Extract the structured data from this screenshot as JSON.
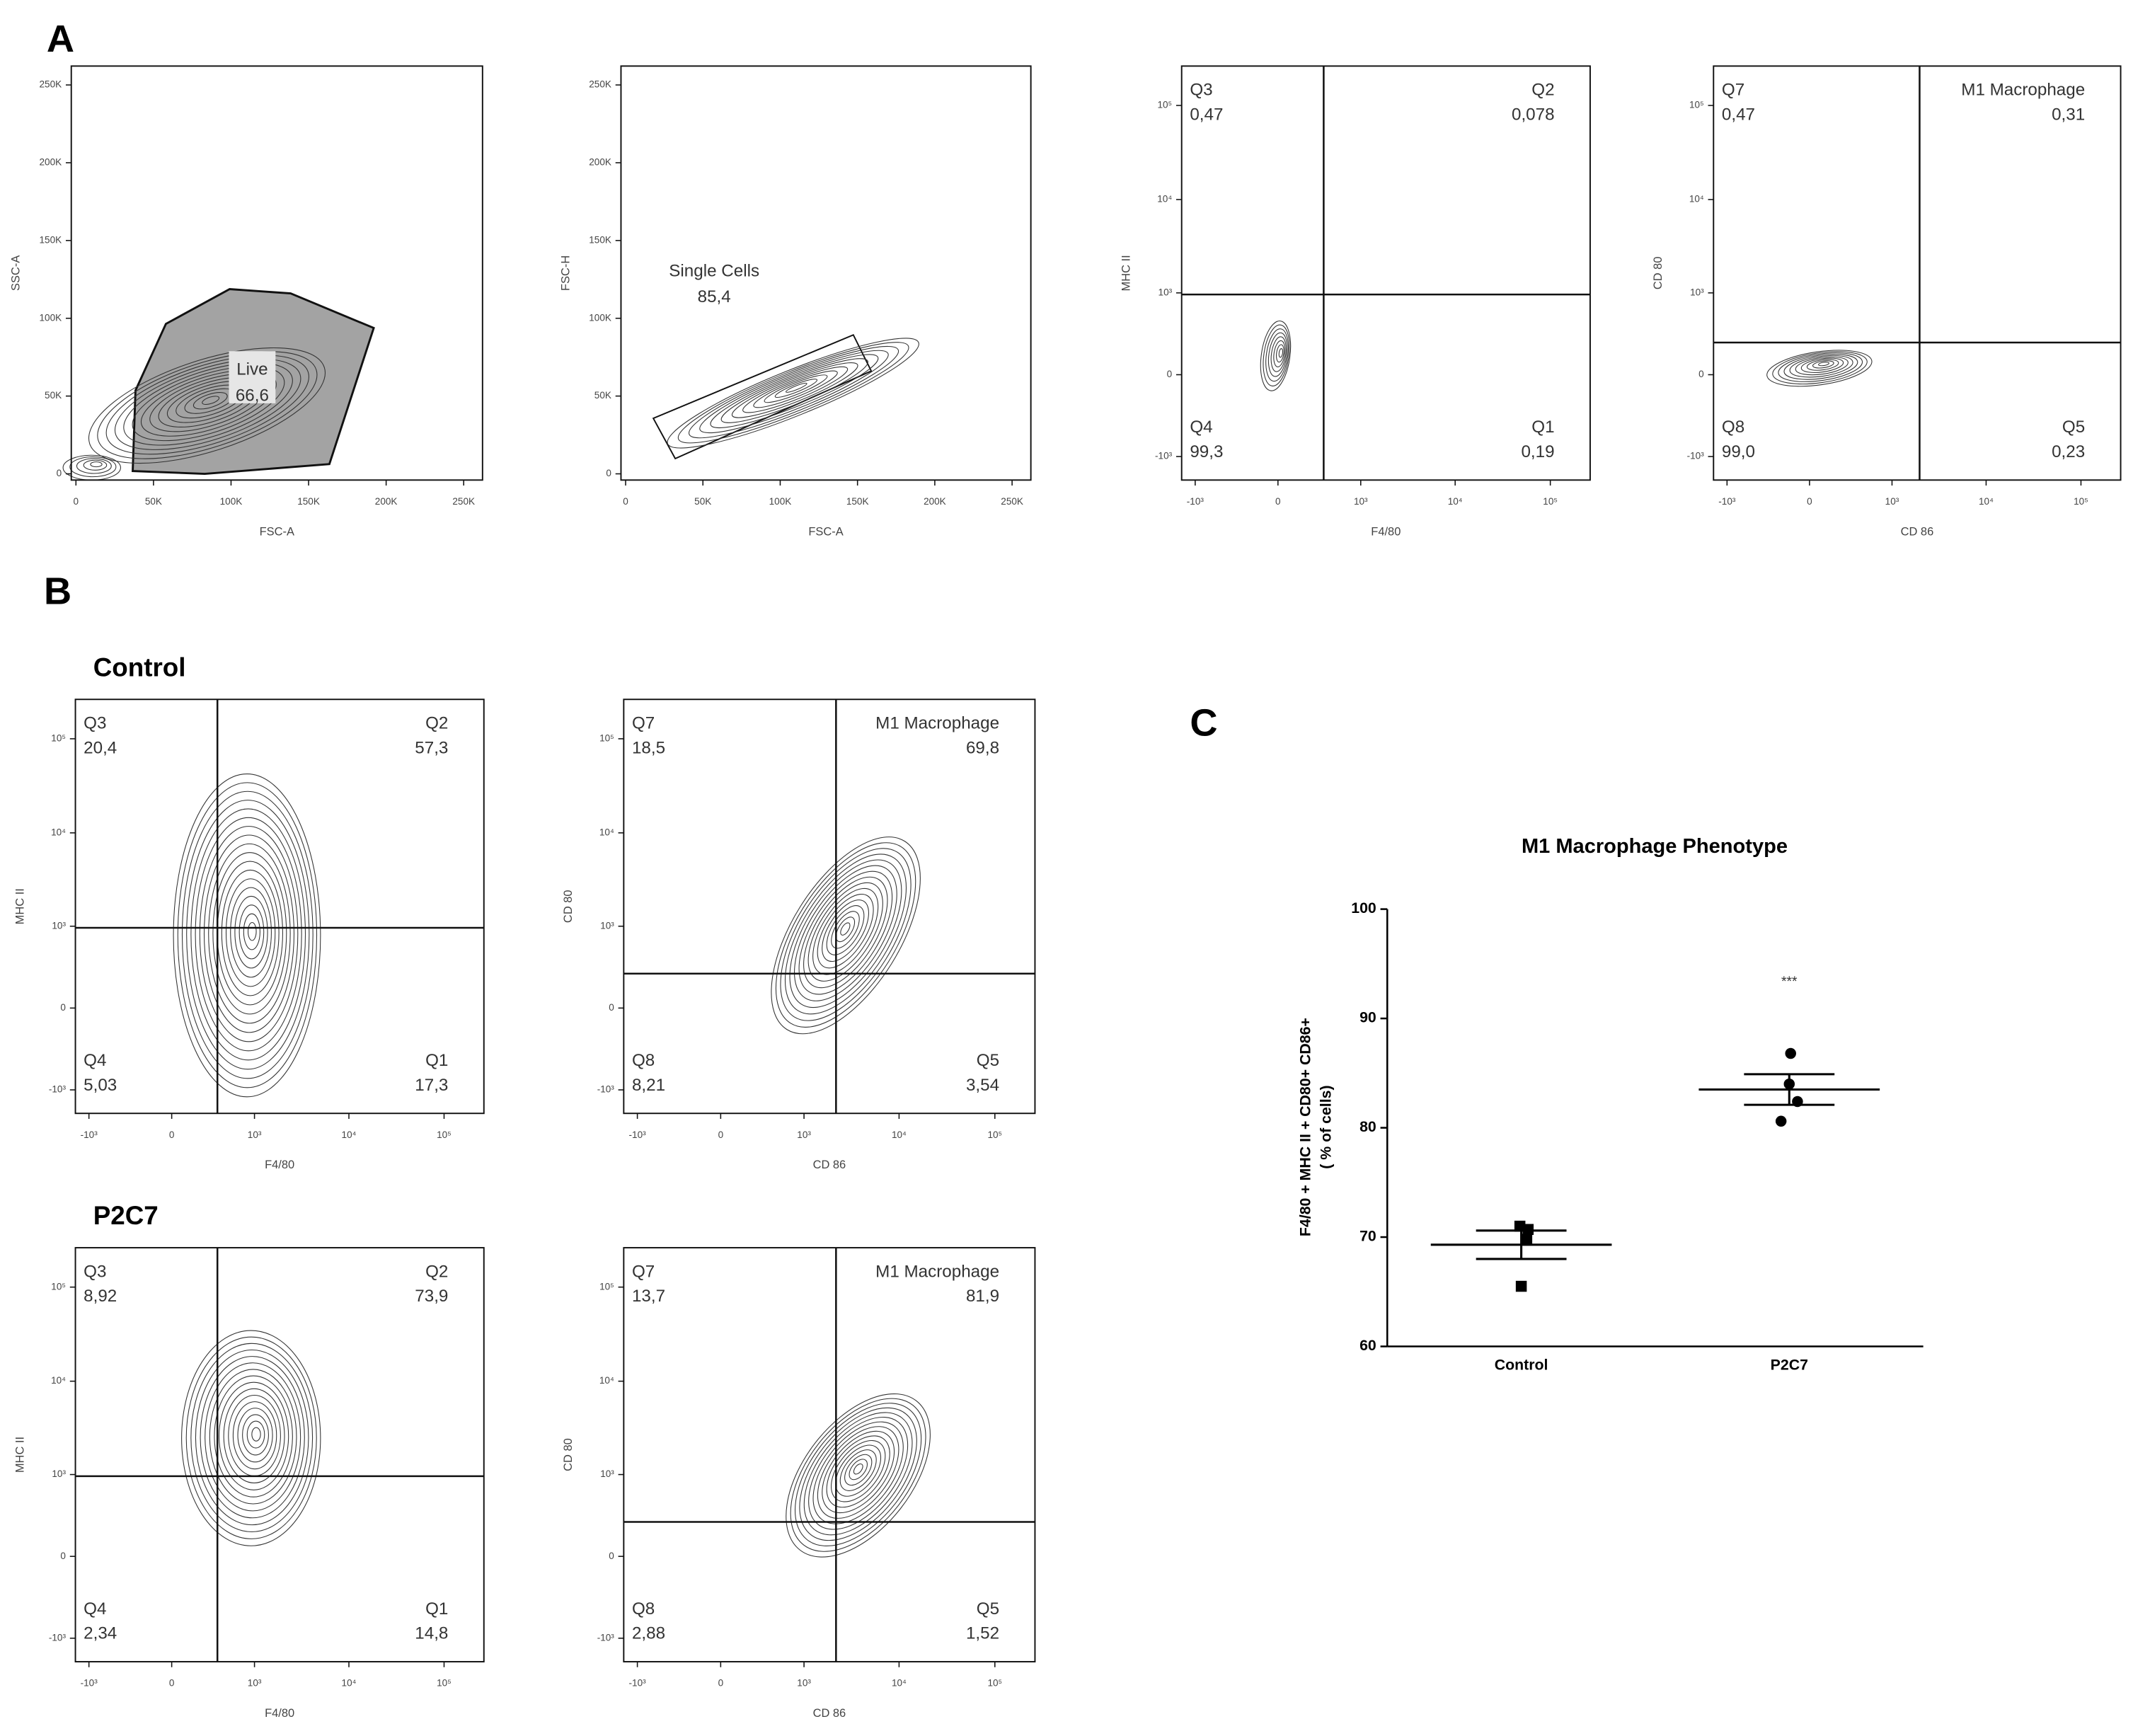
{
  "panel_labels": [
    "A",
    "B",
    "C"
  ],
  "group_labels": [
    "Control",
    "P2C7"
  ],
  "chart_data": [
    {
      "type": "flow",
      "xlabel": "FSC-A",
      "ylabel": "SSC-A",
      "xscale": "linear",
      "yscale": "linear",
      "xlim": [
        -3000,
        262144
      ],
      "ylim": [
        -4000,
        262144
      ],
      "xticks": [
        0,
        {
          "value": 50000,
          "label": "50K"
        },
        {
          "value": 100000,
          "label": "100K"
        },
        {
          "value": 150000,
          "label": "150K"
        },
        {
          "value": 200000,
          "label": "200K"
        },
        {
          "value": 250000,
          "label": "250K"
        }
      ],
      "yticks": [
        0,
        {
          "value": 50000,
          "label": "50K"
        },
        {
          "value": 100000,
          "label": "100K"
        },
        {
          "value": 150000,
          "label": "150K"
        },
        {
          "value": 200000,
          "label": "200K"
        },
        {
          "value": 250000,
          "label": "250K"
        }
      ],
      "gate_polygon": {
        "name": "Live",
        "label": "66,6",
        "color": "#a3a3a3",
        "x": [
          36600,
          38400,
          58000,
          99100,
          138400,
          192000,
          163400,
          83000
        ],
        "y": [
          1800,
          53600,
          96400,
          118750,
          116000,
          93750,
          6250,
          0
        ]
      }
    },
    {
      "type": "flow",
      "xlabel": "FSC-A",
      "ylabel": "FSC-H",
      "xscale": "linear",
      "yscale": "linear",
      "xlim": [
        -3000,
        262144
      ],
      "ylim": [
        -4000,
        262144
      ],
      "xticks": [
        0,
        {
          "value": 50000,
          "label": "50K"
        },
        {
          "value": 100000,
          "label": "100K"
        },
        {
          "value": 150000,
          "label": "150K"
        },
        {
          "value": 200000,
          "label": "200K"
        },
        {
          "value": 250000,
          "label": "250K"
        }
      ],
      "yticks": [
        0,
        {
          "value": 50000,
          "label": "50K"
        },
        {
          "value": 100000,
          "label": "100K"
        },
        {
          "value": 150000,
          "label": "150K"
        },
        {
          "value": 200000,
          "label": "200K"
        },
        {
          "value": 250000,
          "label": "250K"
        }
      ],
      "gate_polygon": {
        "name": "Single Cells",
        "label": "85,4",
        "x": [
          17900,
          32100,
          158900,
          147300
        ],
        "y": [
          35700,
          9800,
          66100,
          89300
        ]
      }
    },
    {
      "type": "flow",
      "xlabel": "F4/80",
      "ylabel": "MHC II",
      "xscale": "biexponential",
      "yscale": "biexponential",
      "xlim": [
        -1400,
        262144
      ],
      "ylim": [
        -1800,
        262144
      ],
      "xticks": [
        {
          "value": -1000,
          "label": "-10³"
        },
        0,
        {
          "value": 1000,
          "label": "10³"
        },
        {
          "value": 10000,
          "label": "10⁴"
        },
        {
          "value": 100000,
          "label": "10⁵"
        }
      ],
      "yticks": [
        {
          "value": -1000,
          "label": "-10³"
        },
        0,
        {
          "value": 1000,
          "label": "10³"
        },
        {
          "value": 10000,
          "label": "10⁴"
        },
        {
          "value": 100000,
          "label": "10⁵"
        }
      ],
      "gate": {
        "x": 370,
        "y": 960
      },
      "quadrants": [
        {
          "name": "Q3",
          "label": "0,47"
        },
        {
          "name": "Q2",
          "label": "0,078"
        },
        {
          "name": "Q4",
          "label": "99,3"
        },
        {
          "name": "Q1",
          "label": "0,19"
        }
      ]
    },
    {
      "type": "flow",
      "xlabel": "CD 86",
      "ylabel": "CD 80",
      "xscale": "biexponential",
      "yscale": "biexponential",
      "xlim": [
        -1400,
        262144
      ],
      "ylim": [
        -1800,
        262144
      ],
      "xticks": [
        {
          "value": -1000,
          "label": "-10³"
        },
        0,
        {
          "value": 1000,
          "label": "10³"
        },
        {
          "value": 10000,
          "label": "10⁴"
        },
        {
          "value": 100000,
          "label": "10⁵"
        }
      ],
      "yticks": [
        {
          "value": -1000,
          "label": "-10³"
        },
        0,
        {
          "value": 1000,
          "label": "10³"
        },
        {
          "value": 10000,
          "label": "10⁴"
        },
        {
          "value": 100000,
          "label": "10⁵"
        }
      ],
      "gate": {
        "x": 1980,
        "y": 240
      },
      "quadrants": [
        {
          "name": "Q7",
          "label": "0,47"
        },
        {
          "name": "M1 Macrophage",
          "label": "0,31"
        },
        {
          "name": "Q8",
          "label": "99,0"
        },
        {
          "name": "Q5",
          "label": "0,23"
        }
      ]
    },
    {
      "type": "flow",
      "xlabel": "F4/80",
      "ylabel": "MHC II",
      "xscale": "biexponential",
      "yscale": "biexponential",
      "xlim": [
        -1400,
        262144
      ],
      "ylim": [
        -1800,
        262144
      ],
      "xticks": [
        {
          "value": -1000,
          "label": "-10³"
        },
        0,
        {
          "value": 1000,
          "label": "10³"
        },
        {
          "value": 10000,
          "label": "10⁴"
        },
        {
          "value": 100000,
          "label": "10⁵"
        }
      ],
      "yticks": [
        {
          "value": -1000,
          "label": "-10³"
        },
        0,
        {
          "value": 1000,
          "label": "10³"
        },
        {
          "value": 10000,
          "label": "10⁴"
        },
        {
          "value": 100000,
          "label": "10⁵"
        }
      ],
      "gate": {
        "x": 370,
        "y": 960
      },
      "quadrants": [
        {
          "name": "Q3",
          "label": "20,4"
        },
        {
          "name": "Q2",
          "label": "57,3"
        },
        {
          "name": "Q4",
          "label": "5,03"
        },
        {
          "name": "Q1",
          "label": "17,3"
        }
      ]
    },
    {
      "type": "flow",
      "xlabel": "CD 86",
      "ylabel": "CD 80",
      "xscale": "biexponential",
      "yscale": "biexponential",
      "xlim": [
        -1400,
        262144
      ],
      "ylim": [
        -1800,
        262144
      ],
      "xticks": [
        {
          "value": -1000,
          "label": "-10³"
        },
        0,
        {
          "value": 1000,
          "label": "10³"
        },
        {
          "value": 10000,
          "label": "10⁴"
        },
        {
          "value": 100000,
          "label": "10⁵"
        }
      ],
      "yticks": [
        {
          "value": -1000,
          "label": "-10³"
        },
        0,
        {
          "value": 1000,
          "label": "10³"
        },
        {
          "value": 10000,
          "label": "10⁴"
        },
        {
          "value": 100000,
          "label": "10⁵"
        }
      ],
      "gate": {
        "x": 2190,
        "y": 260
      },
      "quadrants": [
        {
          "name": "Q7",
          "label": "18,5"
        },
        {
          "name": "M1 Macrophage",
          "label": "69,8"
        },
        {
          "name": "Q8",
          "label": "8,21"
        },
        {
          "name": "Q5",
          "label": "3,54"
        }
      ]
    },
    {
      "type": "flow",
      "xlabel": "F4/80",
      "ylabel": "MHC II",
      "xscale": "biexponential",
      "yscale": "biexponential",
      "xlim": [
        -1400,
        262144
      ],
      "ylim": [
        -1800,
        262144
      ],
      "xticks": [
        {
          "value": -1000,
          "label": "-10³"
        },
        0,
        {
          "value": 1000,
          "label": "10³"
        },
        {
          "value": 10000,
          "label": "10⁴"
        },
        {
          "value": 100000,
          "label": "10⁵"
        }
      ],
      "yticks": [
        {
          "value": -1000,
          "label": "-10³"
        },
        0,
        {
          "value": 1000,
          "label": "10³"
        },
        {
          "value": 10000,
          "label": "10⁴"
        },
        {
          "value": 100000,
          "label": "10⁵"
        }
      ],
      "gate": {
        "x": 370,
        "y": 960
      },
      "quadrants": [
        {
          "name": "Q3",
          "label": "8,92"
        },
        {
          "name": "Q2",
          "label": "73,9"
        },
        {
          "name": "Q4",
          "label": "2,34"
        },
        {
          "name": "Q1",
          "label": "14,8"
        }
      ]
    },
    {
      "type": "flow",
      "xlabel": "CD 86",
      "ylabel": "CD 80",
      "xscale": "biexponential",
      "yscale": "biexponential",
      "xlim": [
        -1400,
        262144
      ],
      "ylim": [
        -1800,
        262144
      ],
      "xticks": [
        {
          "value": -1000,
          "label": "-10³"
        },
        0,
        {
          "value": 1000,
          "label": "10³"
        },
        {
          "value": 10000,
          "label": "10⁴"
        },
        {
          "value": 100000,
          "label": "10⁵"
        }
      ],
      "yticks": [
        {
          "value": -1000,
          "label": "-10³"
        },
        0,
        {
          "value": 1000,
          "label": "10³"
        },
        {
          "value": 10000,
          "label": "10⁴"
        },
        {
          "value": 100000,
          "label": "10⁵"
        }
      ],
      "gate": {
        "x": 2190,
        "y": 260
      },
      "quadrants": [
        {
          "name": "Q7",
          "label": "13,7"
        },
        {
          "name": "M1 Macrophage",
          "label": "81,9"
        },
        {
          "name": "Q8",
          "label": "2,88"
        },
        {
          "name": "Q5",
          "label": "1,52"
        }
      ]
    },
    {
      "type": "dot",
      "title": "M1 Macrophage Phenotype",
      "ylabel": [
        "F4/80 + MHC II + CD80+ CD86+",
        "( % of cells)"
      ],
      "categories": [
        "Control",
        "P2C7"
      ],
      "values": [
        [
          71.0,
          70.7,
          69.8,
          65.5
        ],
        [
          86.8,
          84.0,
          82.4,
          80.6
        ]
      ],
      "markers": [
        "square",
        "circle"
      ],
      "means": [
        69.3,
        83.5
      ],
      "errors": [
        1.3,
        1.4
      ],
      "color": "#000000",
      "annotation": "***",
      "ylim": [
        60,
        100
      ],
      "yticks": [
        60,
        70,
        80,
        90,
        100
      ]
    }
  ]
}
